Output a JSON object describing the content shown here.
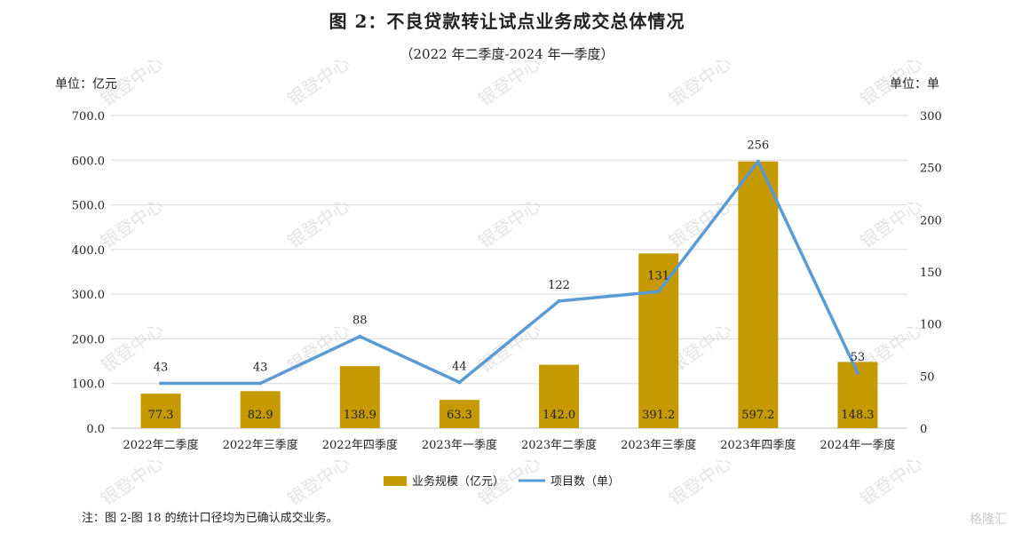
{
  "header": {
    "title": "图 2：不良贷款转让试点业务成交总体情况",
    "subtitle": "（2022 年二季度-2024 年一季度）"
  },
  "note": "注：图 2-图 18 的统计口径均为已确认成交业务。",
  "watermark": "银登中心",
  "brand_watermark": "格隆汇",
  "chart_data": {
    "type": "bar",
    "categories": [
      "2022年二季度",
      "2022年三季度",
      "2022年四季度",
      "2023年一季度",
      "2023年二季度",
      "2023年三季度",
      "2023年四季度",
      "2024年一季度"
    ],
    "series": [
      {
        "name": "业务规模（亿元）",
        "type": "bar",
        "axis": "left",
        "values": [
          77.3,
          82.9,
          138.9,
          63.3,
          142.0,
          391.2,
          597.2,
          148.3
        ],
        "labels": [
          "77.3",
          "82.9",
          "138.9",
          "63.3",
          "142.0",
          "391.2",
          "597.2",
          "148.3"
        ],
        "color": "#C49A00"
      },
      {
        "name": "项目数（单）",
        "type": "line",
        "axis": "right",
        "values": [
          43,
          43,
          88,
          44,
          122,
          131,
          256,
          53
        ],
        "color": "#5B9BD5"
      }
    ],
    "y_left": {
      "label": "单位：亿元",
      "min": 0,
      "max": 700,
      "ticks": [
        "0.0",
        "100.0",
        "200.0",
        "300.0",
        "400.0",
        "500.0",
        "600.0",
        "700.0"
      ]
    },
    "y_right": {
      "label": "单位：单",
      "min": 0,
      "max": 300,
      "ticks": [
        "0",
        "50",
        "100",
        "150",
        "200",
        "250",
        "300"
      ]
    },
    "grid": true,
    "legend_position": "bottom"
  }
}
